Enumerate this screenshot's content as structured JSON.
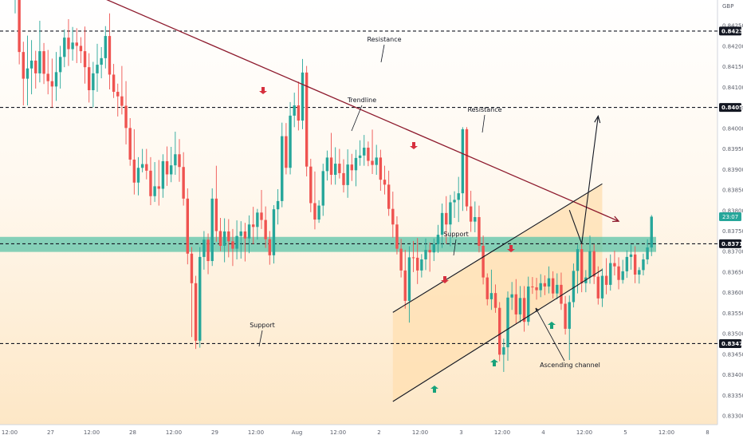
{
  "currency": "GBP",
  "countdown": "23:07",
  "colors": {
    "up": "#26a69a",
    "down": "#ef5350",
    "trendline": "#8e1b2e",
    "support_band": "#5cc4a8",
    "channel_fill": "#ffdfb0",
    "arrow_red": "#d6303e",
    "arrow_green": "#17a27b",
    "bg_top": "#ffffff",
    "bg_bottom": "#fde7c6"
  },
  "annotations": {
    "resistance_top": "Resistance",
    "trendline": "Trendline",
    "resistance_mid": "Resistance",
    "support_mid": "Support",
    "support_low": "Support",
    "ascending_channel": "Ascending channel"
  },
  "chart_data": {
    "type": "candlestick",
    "instrument_currency": "GBP",
    "y_axis": {
      "ticks": [
        "0.84300",
        "0.84250",
        "0.84200",
        "0.84150",
        "0.84100",
        "0.84050",
        "0.84000",
        "0.83950",
        "0.83900",
        "0.83850",
        "0.83800",
        "0.83750",
        "0.83700",
        "0.83650",
        "0.83600",
        "0.83550",
        "0.83500",
        "0.83450",
        "0.83400",
        "0.83350",
        "0.83300"
      ],
      "tick_values": [
        0.843,
        0.8425,
        0.842,
        0.8415,
        0.841,
        0.8405,
        0.84,
        0.8395,
        0.839,
        0.8385,
        0.838,
        0.8375,
        0.837,
        0.8365,
        0.836,
        0.8355,
        0.835,
        0.8345,
        0.834,
        0.8335,
        0.833
      ],
      "range": [
        0.8328,
        0.8437
      ]
    },
    "x_axis": {
      "labels": [
        "12:00",
        "27",
        "12:00",
        "28",
        "12:00",
        "29",
        "12:00",
        "Aug",
        "12:00",
        "2",
        "12:00",
        "3",
        "12:00",
        "4",
        "12:00",
        "5",
        "12:00",
        "8"
      ],
      "label_bars": [
        0,
        10,
        20,
        30,
        40,
        50,
        60,
        70,
        80,
        90,
        100,
        110,
        120,
        130,
        140,
        150,
        160,
        170
      ],
      "bars_total": 172
    },
    "levels": [
      {
        "name": "resistance_top",
        "value": 0.84237,
        "label": "0.84237"
      },
      {
        "name": "resistance_mid",
        "value": 0.84051,
        "label": "0.84051"
      },
      {
        "name": "support_mid",
        "value": 0.83719,
        "label": "0.83719"
      },
      {
        "name": "support_low",
        "value": 0.83476,
        "label": "0.83476"
      }
    ],
    "support_band": [
      0.83705,
      0.8373
    ],
    "trendline": {
      "start": [
        0,
        0.8441
      ],
      "end": [
        147,
        0.83774
      ]
    },
    "channel": {
      "lower": {
        "start": [
          92,
          0.83335
        ],
        "end": [
          143,
          0.83656
        ]
      },
      "upper": {
        "start": [
          92,
          0.83552
        ],
        "end": [
          143,
          0.83865
        ]
      },
      "fill_from_bar": 92,
      "fill_to_bar": 143
    },
    "projection": {
      "points": [
        [
          135,
          0.83801
        ],
        [
          138,
          0.83719
        ],
        [
          142,
          0.8403
        ]
      ]
    },
    "candles": [
      [
        0.84345,
        0.84405,
        0.8428,
        0.84396
      ],
      [
        0.84396,
        0.84416,
        0.84156,
        0.84186
      ],
      [
        0.84186,
        0.84211,
        0.84056,
        0.84121
      ],
      [
        0.84121,
        0.84226,
        0.84056,
        0.84146
      ],
      [
        0.84146,
        0.84215,
        0.84083,
        0.84165
      ],
      [
        0.84165,
        0.84189,
        0.84097,
        0.84134
      ],
      [
        0.84134,
        0.84262,
        0.84112,
        0.84188
      ],
      [
        0.84188,
        0.84208,
        0.84108,
        0.84133
      ],
      [
        0.84133,
        0.84191,
        0.84083,
        0.84115
      ],
      [
        0.84115,
        0.8417,
        0.84051,
        0.84102
      ],
      [
        0.84102,
        0.84186,
        0.84067,
        0.84137
      ],
      [
        0.84137,
        0.84201,
        0.84097,
        0.84174
      ],
      [
        0.84174,
        0.84241,
        0.84149,
        0.84221
      ],
      [
        0.84221,
        0.84266,
        0.84152,
        0.84193
      ],
      [
        0.84193,
        0.84247,
        0.84165,
        0.84209
      ],
      [
        0.84209,
        0.84244,
        0.84159,
        0.84201
      ],
      [
        0.84201,
        0.84222,
        0.84159,
        0.84188
      ],
      [
        0.84188,
        0.84248,
        0.84109,
        0.84149
      ],
      [
        0.84149,
        0.84183,
        0.84063,
        0.84093
      ],
      [
        0.84093,
        0.84162,
        0.84051,
        0.84134
      ],
      [
        0.84134,
        0.84206,
        0.84089,
        0.84155
      ],
      [
        0.84155,
        0.84198,
        0.84122,
        0.84171
      ],
      [
        0.84171,
        0.84249,
        0.84146,
        0.84225
      ],
      [
        0.84225,
        0.8428,
        0.84095,
        0.84131
      ],
      [
        0.84131,
        0.84157,
        0.84074,
        0.84089
      ],
      [
        0.84089,
        0.84109,
        0.84029,
        0.84078
      ],
      [
        0.84078,
        0.84152,
        0.84034,
        0.84055
      ],
      [
        0.84055,
        0.84115,
        0.83961,
        0.84001
      ],
      [
        0.84001,
        0.84025,
        0.83909,
        0.83924
      ],
      [
        0.83924,
        0.83998,
        0.83839,
        0.83868
      ],
      [
        0.83868,
        0.8393,
        0.83837,
        0.83904
      ],
      [
        0.83904,
        0.8395,
        0.83893,
        0.83913
      ],
      [
        0.83913,
        0.8395,
        0.83876,
        0.83897
      ],
      [
        0.83897,
        0.8393,
        0.83813,
        0.83835
      ],
      [
        0.83835,
        0.83918,
        0.83821,
        0.83859
      ],
      [
        0.83859,
        0.83923,
        0.83812,
        0.83853
      ],
      [
        0.83853,
        0.83937,
        0.83831,
        0.8392
      ],
      [
        0.8392,
        0.83956,
        0.8386,
        0.83888
      ],
      [
        0.83888,
        0.83955,
        0.83869,
        0.8391
      ],
      [
        0.8391,
        0.83992,
        0.83887,
        0.83937
      ],
      [
        0.83937,
        0.83974,
        0.8387,
        0.83906
      ],
      [
        0.83906,
        0.83942,
        0.83812,
        0.83829
      ],
      [
        0.83829,
        0.83854,
        0.83669,
        0.83695
      ],
      [
        0.83695,
        0.83711,
        0.83492,
        0.83623
      ],
      [
        0.83623,
        0.83641,
        0.83463,
        0.83483
      ],
      [
        0.83483,
        0.83711,
        0.83466,
        0.83687
      ],
      [
        0.83687,
        0.8375,
        0.83656,
        0.83729
      ],
      [
        0.83729,
        0.83744,
        0.83645,
        0.83677
      ],
      [
        0.83677,
        0.83854,
        0.83665,
        0.83829
      ],
      [
        0.83829,
        0.83909,
        0.83724,
        0.8375
      ],
      [
        0.8375,
        0.83782,
        0.83701,
        0.83714
      ],
      [
        0.83714,
        0.83781,
        0.83674,
        0.83749
      ],
      [
        0.83749,
        0.83779,
        0.83686,
        0.83725
      ],
      [
        0.83725,
        0.83755,
        0.83665,
        0.83707
      ],
      [
        0.83707,
        0.83776,
        0.83681,
        0.83738
      ],
      [
        0.83738,
        0.83774,
        0.83683,
        0.83749
      ],
      [
        0.83749,
        0.8377,
        0.83676,
        0.83732
      ],
      [
        0.83732,
        0.83788,
        0.83696,
        0.83766
      ],
      [
        0.83766,
        0.83809,
        0.83718,
        0.8376
      ],
      [
        0.8376,
        0.83804,
        0.83729,
        0.83795
      ],
      [
        0.83795,
        0.8385,
        0.83755,
        0.83777
      ],
      [
        0.83777,
        0.8381,
        0.83709,
        0.8373
      ],
      [
        0.8373,
        0.8375,
        0.83668,
        0.83691
      ],
      [
        0.83691,
        0.83813,
        0.83671,
        0.83803
      ],
      [
        0.83803,
        0.83852,
        0.83766,
        0.83823
      ],
      [
        0.83823,
        0.84014,
        0.83808,
        0.83981
      ],
      [
        0.83981,
        0.84013,
        0.83888,
        0.83904
      ],
      [
        0.83904,
        0.84064,
        0.83888,
        0.84031
      ],
      [
        0.84031,
        0.84087,
        0.84003,
        0.84056
      ],
      [
        0.84056,
        0.84114,
        0.83995,
        0.84019
      ],
      [
        0.84019,
        0.84169,
        0.83998,
        0.84136
      ],
      [
        0.84136,
        0.84152,
        0.83883,
        0.83907
      ],
      [
        0.83907,
        0.83926,
        0.83796,
        0.83818
      ],
      [
        0.83818,
        0.83895,
        0.83754,
        0.83778
      ],
      [
        0.83778,
        0.83825,
        0.8377,
        0.83812
      ],
      [
        0.83812,
        0.83914,
        0.83787,
        0.83896
      ],
      [
        0.83896,
        0.83946,
        0.83873,
        0.83929
      ],
      [
        0.83929,
        0.83989,
        0.83863,
        0.83887
      ],
      [
        0.83887,
        0.83954,
        0.83863,
        0.83914
      ],
      [
        0.83914,
        0.8395,
        0.83878,
        0.83891
      ],
      [
        0.83891,
        0.83925,
        0.83844,
        0.83862
      ],
      [
        0.83862,
        0.83949,
        0.83831,
        0.83912
      ],
      [
        0.83912,
        0.83938,
        0.83872,
        0.83898
      ],
      [
        0.83898,
        0.83948,
        0.83859,
        0.83928
      ],
      [
        0.83928,
        0.83971,
        0.83909,
        0.83934
      ],
      [
        0.83934,
        0.83984,
        0.83909,
        0.83953
      ],
      [
        0.83953,
        0.83968,
        0.83908,
        0.83921
      ],
      [
        0.83921,
        0.83997,
        0.83889,
        0.83911
      ],
      [
        0.83911,
        0.8396,
        0.83887,
        0.83929
      ],
      [
        0.83929,
        0.83948,
        0.83848,
        0.83875
      ],
      [
        0.83875,
        0.83909,
        0.83839,
        0.83863
      ],
      [
        0.83863,
        0.83897,
        0.83787,
        0.83804
      ],
      [
        0.83804,
        0.83846,
        0.83734,
        0.83766
      ],
      [
        0.83766,
        0.83786,
        0.83693,
        0.83707
      ],
      [
        0.83707,
        0.83731,
        0.83637,
        0.83654
      ],
      [
        0.83654,
        0.83704,
        0.83561,
        0.8358
      ],
      [
        0.8358,
        0.83713,
        0.83527,
        0.83686
      ],
      [
        0.83686,
        0.83726,
        0.8365,
        0.83685
      ],
      [
        0.83685,
        0.83733,
        0.83621,
        0.83654
      ],
      [
        0.83654,
        0.83694,
        0.83637,
        0.83681
      ],
      [
        0.83681,
        0.83732,
        0.83655,
        0.83704
      ],
      [
        0.83704,
        0.83722,
        0.83651,
        0.83698
      ],
      [
        0.83698,
        0.83732,
        0.83677,
        0.83718
      ],
      [
        0.83718,
        0.83765,
        0.83697,
        0.83741
      ],
      [
        0.83741,
        0.83817,
        0.83709,
        0.83794
      ],
      [
        0.83794,
        0.83835,
        0.83719,
        0.83766
      ],
      [
        0.83766,
        0.83838,
        0.83713,
        0.8382
      ],
      [
        0.8382,
        0.83847,
        0.83782,
        0.83826
      ],
      [
        0.83826,
        0.83882,
        0.83772,
        0.83842
      ],
      [
        0.83842,
        0.84003,
        0.83799,
        0.83998
      ],
      [
        0.83998,
        0.84003,
        0.83799,
        0.8381
      ],
      [
        0.8381,
        0.83848,
        0.83748,
        0.83773
      ],
      [
        0.83773,
        0.83822,
        0.83747,
        0.83784
      ],
      [
        0.83784,
        0.83812,
        0.83698,
        0.83714
      ],
      [
        0.83714,
        0.83739,
        0.8362,
        0.83637
      ],
      [
        0.83637,
        0.83647,
        0.83569,
        0.83584
      ],
      [
        0.83584,
        0.83656,
        0.83558,
        0.83599
      ],
      [
        0.83599,
        0.8362,
        0.83551,
        0.83563
      ],
      [
        0.83563,
        0.83577,
        0.83433,
        0.83449
      ],
      [
        0.83449,
        0.83488,
        0.83407,
        0.83467
      ],
      [
        0.83467,
        0.83603,
        0.83434,
        0.83588
      ],
      [
        0.83588,
        0.83626,
        0.83558,
        0.83596
      ],
      [
        0.83596,
        0.83633,
        0.83525,
        0.83547
      ],
      [
        0.83547,
        0.83616,
        0.83527,
        0.83587
      ],
      [
        0.83587,
        0.83616,
        0.83505,
        0.83529
      ],
      [
        0.83529,
        0.83639,
        0.8352,
        0.83615
      ],
      [
        0.83615,
        0.83638,
        0.83597,
        0.83613
      ],
      [
        0.83613,
        0.83636,
        0.83583,
        0.83606
      ],
      [
        0.83606,
        0.83645,
        0.83589,
        0.83623
      ],
      [
        0.83623,
        0.83642,
        0.83594,
        0.83615
      ],
      [
        0.83615,
        0.83664,
        0.83598,
        0.83635
      ],
      [
        0.83635,
        0.83652,
        0.83586,
        0.83598
      ],
      [
        0.83598,
        0.83647,
        0.83584,
        0.83619
      ],
      [
        0.83619,
        0.83649,
        0.83558,
        0.83573
      ],
      [
        0.83573,
        0.83592,
        0.83498,
        0.83512
      ],
      [
        0.83512,
        0.83593,
        0.83436,
        0.83577
      ],
      [
        0.83577,
        0.83671,
        0.83564,
        0.83653
      ],
      [
        0.83653,
        0.83717,
        0.83598,
        0.83706
      ],
      [
        0.83706,
        0.83719,
        0.83601,
        0.83623
      ],
      [
        0.83623,
        0.83655,
        0.83601,
        0.83637
      ],
      [
        0.83637,
        0.83739,
        0.83622,
        0.83701
      ],
      [
        0.83701,
        0.83718,
        0.83621,
        0.83639
      ],
      [
        0.83639,
        0.83664,
        0.83571,
        0.83586
      ],
      [
        0.83586,
        0.83659,
        0.83565,
        0.83641
      ],
      [
        0.83641,
        0.83684,
        0.83596,
        0.83619
      ],
      [
        0.83619,
        0.83693,
        0.83605,
        0.83672
      ],
      [
        0.83672,
        0.83702,
        0.83642,
        0.83664
      ],
      [
        0.83664,
        0.83686,
        0.83608,
        0.83631
      ],
      [
        0.83631,
        0.8368,
        0.83622,
        0.83652
      ],
      [
        0.83652,
        0.83703,
        0.83636,
        0.83687
      ],
      [
        0.83687,
        0.83717,
        0.83656,
        0.83693
      ],
      [
        0.83693,
        0.83713,
        0.83623,
        0.83644
      ],
      [
        0.83644,
        0.83662,
        0.83622,
        0.83655
      ],
      [
        0.83655,
        0.83695,
        0.83642,
        0.83681
      ],
      [
        0.83681,
        0.8373,
        0.83669,
        0.8371
      ],
      [
        0.8371,
        0.83789,
        0.83689,
        0.83785
      ]
    ]
  }
}
